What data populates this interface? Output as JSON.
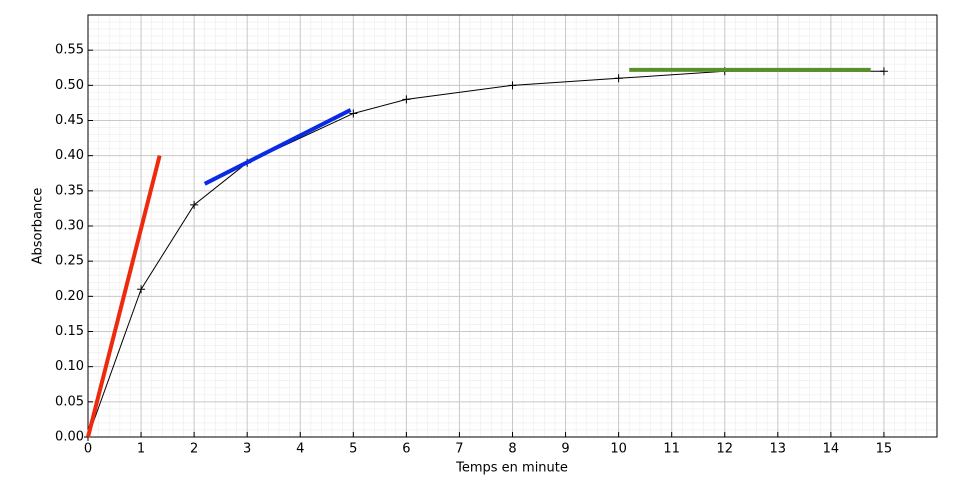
{
  "chart_data": {
    "type": "line",
    "x_label": "Temps en minute",
    "y_label": "Absorbance",
    "xlim": [
      0,
      16
    ],
    "ylim": [
      0,
      0.6
    ],
    "xticks": [
      0,
      1,
      2,
      3,
      4,
      5,
      6,
      7,
      8,
      9,
      10,
      11,
      12,
      13,
      14,
      15
    ],
    "yticks": [
      {
        "value": 0,
        "label": "0.00"
      },
      {
        "value": 0.05,
        "label": "0.05"
      },
      {
        "value": 0.1,
        "label": "0.10"
      },
      {
        "value": 0.15,
        "label": "0.15"
      },
      {
        "value": 0.2,
        "label": "0.20"
      },
      {
        "value": 0.25,
        "label": "0.25"
      },
      {
        "value": 0.3,
        "label": "0.30"
      },
      {
        "value": 0.35,
        "label": "0.35"
      },
      {
        "value": 0.4,
        "label": "0.40"
      },
      {
        "value": 0.45,
        "label": "0.45"
      },
      {
        "value": 0.5,
        "label": "0.50"
      },
      {
        "value": 0.55,
        "label": "0.55"
      }
    ],
    "grid": true,
    "minor_grid": true,
    "series": [
      {
        "color": "#000000",
        "width": 1,
        "marker": "+",
        "x": [
          0,
          1,
          2,
          3,
          5,
          6,
          8,
          10,
          12,
          15
        ],
        "values": [
          0,
          0.21,
          0.33,
          0.39,
          0.46,
          0.48,
          0.5,
          0.51,
          0.52,
          0.52
        ]
      },
      {
        "color": "#ee2a0c",
        "width": 4,
        "x": [
          0,
          1.35
        ],
        "values": [
          0,
          0.4
        ]
      },
      {
        "color": "#0a2ae6",
        "width": 4,
        "x": [
          2.2,
          4.95
        ],
        "values": [
          0.36,
          0.465
        ]
      },
      {
        "color": "#5a8f2a",
        "width": 4,
        "x": [
          10.2,
          14.75
        ],
        "values": [
          0.522,
          0.522
        ]
      }
    ]
  }
}
